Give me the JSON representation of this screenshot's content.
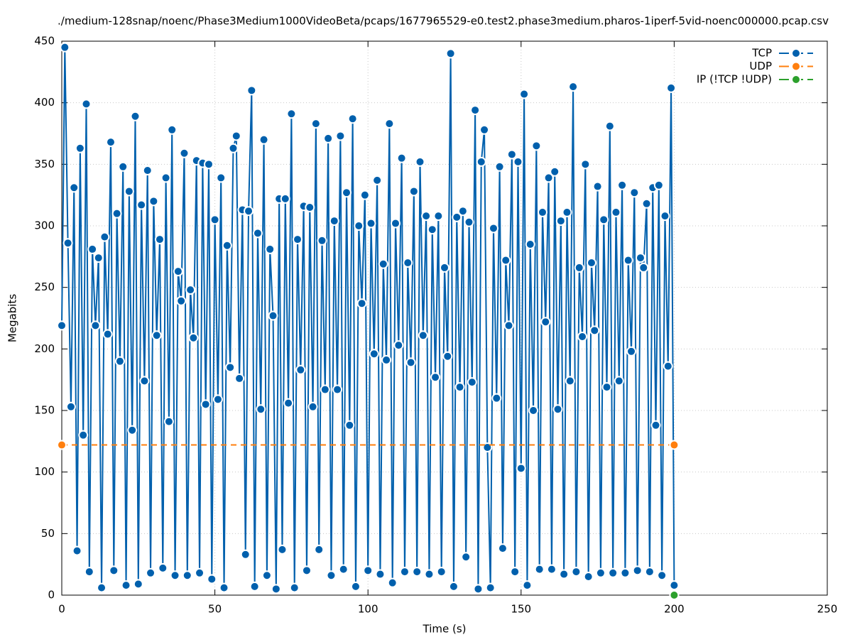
{
  "chart_data": {
    "type": "line",
    "title": "./medium-128snap/noenc/Phase3Medium1000VideoBeta/pcaps/1677965529-e0.test2.phase3medium.pharos-1iperf-5vid-noenc000000.pcap.csv",
    "x_label": "Time (s)",
    "y_label": "Megabits",
    "xlim": [
      0,
      250
    ],
    "xticks": [
      0,
      50,
      100,
      150,
      200,
      250
    ],
    "ylim": [
      0,
      450
    ],
    "yticks": [
      0,
      50,
      100,
      150,
      200,
      250,
      300,
      350,
      400,
      450
    ],
    "grid": true,
    "legend": "top-right",
    "series": [
      {
        "name": "TCP",
        "color": "#0060ad",
        "x": [
          0,
          1,
          2,
          3,
          4,
          5,
          6,
          7,
          8,
          9,
          10,
          11,
          12,
          13,
          14,
          15,
          16,
          17,
          18,
          19,
          20,
          21,
          22,
          23,
          24,
          25,
          26,
          27,
          28,
          29,
          30,
          31,
          32,
          33,
          34,
          35,
          36,
          37,
          38,
          39,
          40,
          41,
          42,
          43,
          44,
          45,
          46,
          47,
          48,
          49,
          50,
          51,
          52,
          53,
          54,
          55,
          56,
          57,
          58,
          59,
          60,
          61,
          62,
          63,
          64,
          65,
          66,
          67,
          68,
          69,
          70,
          71,
          72,
          73,
          74,
          75,
          76,
          77,
          78,
          79,
          80,
          81,
          82,
          83,
          84,
          85,
          86,
          87,
          88,
          89,
          90,
          91,
          92,
          93,
          94,
          95,
          96,
          97,
          98,
          99,
          100,
          101,
          102,
          103,
          104,
          105,
          106,
          107,
          108,
          109,
          110,
          111,
          112,
          113,
          114,
          115,
          116,
          117,
          118,
          119,
          120,
          121,
          122,
          123,
          124,
          125,
          126,
          127,
          128,
          129,
          130,
          131,
          132,
          133,
          134,
          135,
          136,
          137,
          138,
          139,
          140,
          141,
          142,
          143,
          144,
          145,
          146,
          147,
          148,
          149,
          150,
          151,
          152,
          153,
          154,
          155,
          156,
          157,
          158,
          159,
          160,
          161,
          162,
          163,
          164,
          165,
          166,
          167,
          168,
          169,
          170,
          171,
          172,
          173,
          174,
          175,
          176,
          177,
          178,
          179,
          180,
          181,
          182,
          183,
          184,
          185,
          186,
          187,
          188,
          189,
          190,
          191,
          192,
          193,
          194,
          195,
          196,
          197,
          198,
          199,
          200
        ],
        "values": [
          219,
          445,
          286,
          153,
          331,
          36,
          363,
          130,
          399,
          19,
          281,
          219,
          274,
          6,
          291,
          212,
          368,
          20,
          310,
          190,
          348,
          8,
          328,
          134,
          389,
          9,
          317,
          174,
          345,
          18,
          320,
          211,
          289,
          22,
          339,
          141,
          378,
          16,
          263,
          239,
          359,
          16,
          248,
          209,
          353,
          18,
          351,
          155,
          350,
          13,
          305,
          159,
          339,
          6,
          284,
          185,
          363,
          373,
          176,
          313,
          33,
          312,
          410,
          7,
          294,
          151,
          370,
          16,
          281,
          227,
          5,
          322,
          37,
          322,
          156,
          391,
          6,
          289,
          183,
          316,
          20,
          315,
          153,
          383,
          37,
          288,
          167,
          371,
          16,
          304,
          167,
          373,
          21,
          327,
          138,
          387,
          7,
          300,
          237,
          325,
          20,
          302,
          196,
          337,
          17,
          269,
          191,
          383,
          10,
          302,
          203,
          355,
          19,
          270,
          189,
          328,
          19,
          352,
          211,
          308,
          17,
          297,
          177,
          308,
          19,
          266,
          194,
          440,
          7,
          307,
          169,
          312,
          31,
          303,
          173,
          394,
          5,
          352,
          378,
          120,
          6,
          298,
          160,
          348,
          38,
          272,
          219,
          358,
          19,
          352,
          103,
          407,
          8,
          285,
          150,
          365,
          21,
          311,
          222,
          339,
          21,
          344,
          151,
          304,
          17,
          311,
          174,
          413,
          19,
          266,
          210,
          350,
          15,
          270,
          215,
          332,
          18,
          305,
          169,
          381,
          18,
          311,
          174,
          333,
          18,
          272,
          198,
          327,
          20,
          274,
          266,
          318,
          19,
          331,
          138,
          333,
          16,
          308,
          186,
          412,
          8
        ]
      },
      {
        "name": "UDP",
        "color": "#ff7f0e",
        "x": [
          0,
          200
        ],
        "values": [
          122,
          122
        ]
      },
      {
        "name": "IP (!TCP  !UDP)",
        "color": "#2ca02c",
        "x": [
          200
        ],
        "values": [
          0
        ]
      }
    ]
  }
}
